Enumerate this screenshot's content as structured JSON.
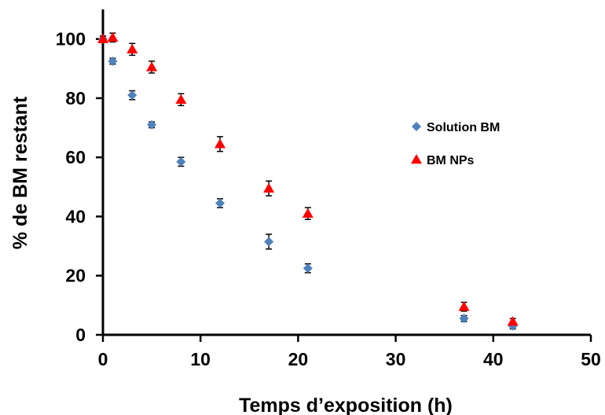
{
  "chart_data": {
    "type": "scatter",
    "xlabel": "Temps d’exposition (h)",
    "ylabel": "% de BM restant",
    "xlim": [
      0,
      50
    ],
    "ylim": [
      0,
      110
    ],
    "xticks": [
      "0",
      "10",
      "20",
      "30",
      "40",
      "50"
    ],
    "yticks": [
      "0",
      "20",
      "40",
      "60",
      "80",
      "100"
    ],
    "grid": false,
    "legend_position": "right",
    "series": [
      {
        "name": "Solution BM",
        "marker": "diamond",
        "color": "#4F81BD",
        "points": [
          {
            "x": 0,
            "y": 100,
            "err": 1
          },
          {
            "x": 1,
            "y": 92.5,
            "err": 1
          },
          {
            "x": 3,
            "y": 81,
            "err": 1.5
          },
          {
            "x": 5,
            "y": 71,
            "err": 1
          },
          {
            "x": 8,
            "y": 58.5,
            "err": 1.5
          },
          {
            "x": 12,
            "y": 44.5,
            "err": 1.5
          },
          {
            "x": 17,
            "y": 31.5,
            "err": 2.5
          },
          {
            "x": 21,
            "y": 22.5,
            "err": 1.5
          },
          {
            "x": 37,
            "y": 5.5,
            "err": 1
          },
          {
            "x": 42,
            "y": 3,
            "err": 1
          }
        ]
      },
      {
        "name": "BM NPs",
        "marker": "triangle",
        "color": "#FF0000",
        "points": [
          {
            "x": 0,
            "y": 100,
            "err": 1
          },
          {
            "x": 1,
            "y": 100.5,
            "err": 1.5
          },
          {
            "x": 3,
            "y": 96.5,
            "err": 2
          },
          {
            "x": 5,
            "y": 90.5,
            "err": 2
          },
          {
            "x": 8,
            "y": 79.5,
            "err": 2
          },
          {
            "x": 12,
            "y": 64.5,
            "err": 2.5
          },
          {
            "x": 17,
            "y": 49.5,
            "err": 2.5
          },
          {
            "x": 21,
            "y": 41,
            "err": 2
          },
          {
            "x": 37,
            "y": 9.5,
            "err": 1.5
          },
          {
            "x": 42,
            "y": 4.5,
            "err": 1
          }
        ]
      }
    ]
  }
}
